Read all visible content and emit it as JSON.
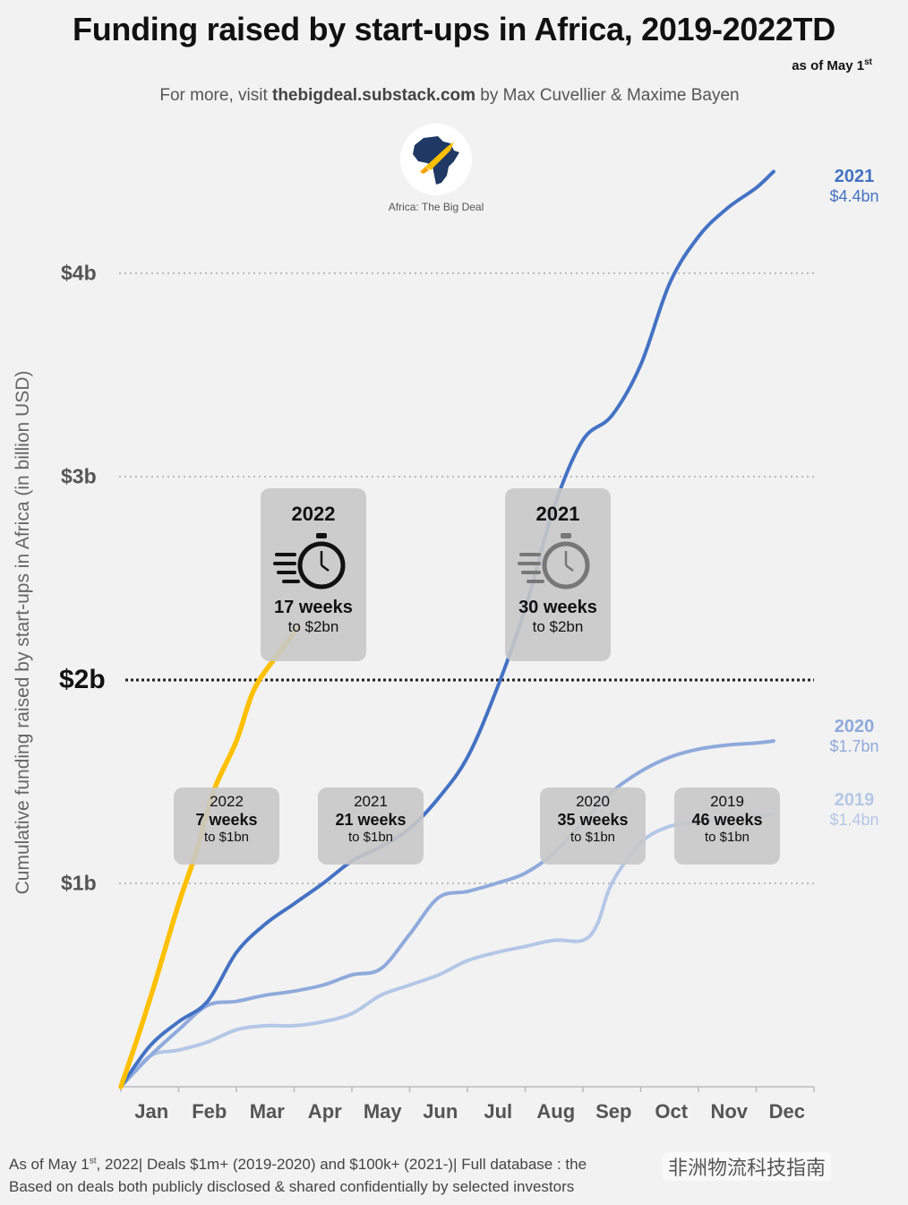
{
  "header": {
    "title": "Funding raised by start-ups in Africa, 2019-2022TD",
    "as_of": "as of May 1",
    "as_of_sup": "st",
    "subtitle_pre": "For more, visit ",
    "subtitle_site": "thebigdeal.substack.com",
    "subtitle_post": " by Max Cuvellier & Maxime Bayen",
    "logo_text": "Africa: The Big Deal"
  },
  "colors": {
    "y2022": "#FFC000",
    "y2021": "#4472C4",
    "y2020": "#8FAADC",
    "y2019": "#B4C7E7",
    "callout_bg": "#C8C8C8"
  },
  "icons": [
    "africa-logo-icon",
    "rocket-icon",
    "stopwatch-icon"
  ],
  "chart_data": {
    "type": "line",
    "ylabel": "Cumulative funding raised by start-ups in Africa (in billion USD)",
    "xlabel": "",
    "categories": [
      "Jan",
      "Feb",
      "Mar",
      "Apr",
      "May",
      "Jun",
      "Jul",
      "Aug",
      "Sep",
      "Oct",
      "Nov",
      "Dec"
    ],
    "x_range": [
      0,
      12
    ],
    "ylim": [
      0,
      4.5
    ],
    "yticks": [
      {
        "label": "$1b",
        "value": 1
      },
      {
        "label": "$2b",
        "value": 2
      },
      {
        "label": "$3b",
        "value": 3
      },
      {
        "label": "$4b",
        "value": 4
      }
    ],
    "grid": "dotted horizontal",
    "threshold_line": 2,
    "series": [
      {
        "name": "2019",
        "end_label": "$1.4bn",
        "points": [
          [
            0,
            0
          ],
          [
            0.5,
            0.15
          ],
          [
            1,
            0.18
          ],
          [
            1.5,
            0.22
          ],
          [
            2,
            0.28
          ],
          [
            2.5,
            0.3
          ],
          [
            3,
            0.3
          ],
          [
            3.5,
            0.32
          ],
          [
            4,
            0.36
          ],
          [
            4.5,
            0.45
          ],
          [
            5,
            0.5
          ],
          [
            5.5,
            0.55
          ],
          [
            6,
            0.62
          ],
          [
            6.5,
            0.66
          ],
          [
            7,
            0.69
          ],
          [
            7.5,
            0.72
          ],
          [
            8,
            0.72
          ],
          [
            8.25,
            0.8
          ],
          [
            8.5,
            1.0
          ],
          [
            9,
            1.2
          ],
          [
            9.5,
            1.28
          ],
          [
            10,
            1.3
          ],
          [
            10.5,
            1.32
          ],
          [
            11,
            1.33
          ],
          [
            11.3,
            1.34
          ]
        ]
      },
      {
        "name": "2020",
        "end_label": "$1.7bn",
        "points": [
          [
            0,
            0
          ],
          [
            0.5,
            0.15
          ],
          [
            1,
            0.28
          ],
          [
            1.5,
            0.4
          ],
          [
            2,
            0.42
          ],
          [
            2.5,
            0.45
          ],
          [
            3,
            0.47
          ],
          [
            3.5,
            0.5
          ],
          [
            4,
            0.55
          ],
          [
            4.5,
            0.58
          ],
          [
            5,
            0.75
          ],
          [
            5.5,
            0.93
          ],
          [
            6,
            0.96
          ],
          [
            6.5,
            1.0
          ],
          [
            7,
            1.05
          ],
          [
            7.5,
            1.15
          ],
          [
            8,
            1.3
          ],
          [
            8.5,
            1.45
          ],
          [
            9,
            1.55
          ],
          [
            9.5,
            1.62
          ],
          [
            10,
            1.66
          ],
          [
            10.5,
            1.68
          ],
          [
            11,
            1.69
          ],
          [
            11.3,
            1.7
          ]
        ]
      },
      {
        "name": "2021",
        "end_label": "$4.4bn",
        "points": [
          [
            0,
            0
          ],
          [
            0.5,
            0.2
          ],
          [
            1,
            0.32
          ],
          [
            1.5,
            0.42
          ],
          [
            2,
            0.66
          ],
          [
            2.5,
            0.8
          ],
          [
            3,
            0.9
          ],
          [
            3.5,
            1.0
          ],
          [
            4,
            1.11
          ],
          [
            4.5,
            1.18
          ],
          [
            5,
            1.27
          ],
          [
            5.5,
            1.42
          ],
          [
            6,
            1.62
          ],
          [
            6.5,
            1.95
          ],
          [
            7,
            2.35
          ],
          [
            7.5,
            2.85
          ],
          [
            8,
            3.18
          ],
          [
            8.5,
            3.3
          ],
          [
            9,
            3.55
          ],
          [
            9.5,
            3.95
          ],
          [
            10,
            4.18
          ],
          [
            10.5,
            4.32
          ],
          [
            11,
            4.42
          ],
          [
            11.3,
            4.5
          ]
        ]
      },
      {
        "name": "2022",
        "points": [
          [
            0,
            0
          ],
          [
            0.3,
            0.25
          ],
          [
            0.6,
            0.52
          ],
          [
            1,
            0.9
          ],
          [
            1.3,
            1.15
          ],
          [
            1.6,
            1.45
          ],
          [
            2,
            1.7
          ],
          [
            2.3,
            1.95
          ],
          [
            2.7,
            2.12
          ],
          [
            3.05,
            2.25
          ]
        ]
      }
    ],
    "annotations": [
      {
        "id": "c2022-1bn",
        "year": "2022",
        "weeks": "7 weeks",
        "to": "to $1bn"
      },
      {
        "id": "c2021-1bn",
        "year": "2021",
        "weeks": "21 weeks",
        "to": "to $1bn"
      },
      {
        "id": "c2020-1bn",
        "year": "2020",
        "weeks": "35 weeks",
        "to": "to $1bn"
      },
      {
        "id": "c2019-1bn",
        "year": "2019",
        "weeks": "46 weeks",
        "to": "to $1bn"
      },
      {
        "id": "c2022-2bn",
        "year": "2022",
        "weeks": "17 weeks",
        "to": "to $2bn"
      },
      {
        "id": "c2021-2bn",
        "year": "2021",
        "weeks": "30 weeks",
        "to": "to $2bn"
      }
    ]
  },
  "footer": {
    "line1_pre": "As of May 1",
    "line1_sup": "st",
    "line1_post": ", 2022| Deals $1m+ (2019-2020) and $100k+ (2021-)| Full database : the",
    "line2": "Based on deals both publicly disclosed & shared confidentially by selected investors",
    "watermark": "非洲物流科技指南"
  }
}
